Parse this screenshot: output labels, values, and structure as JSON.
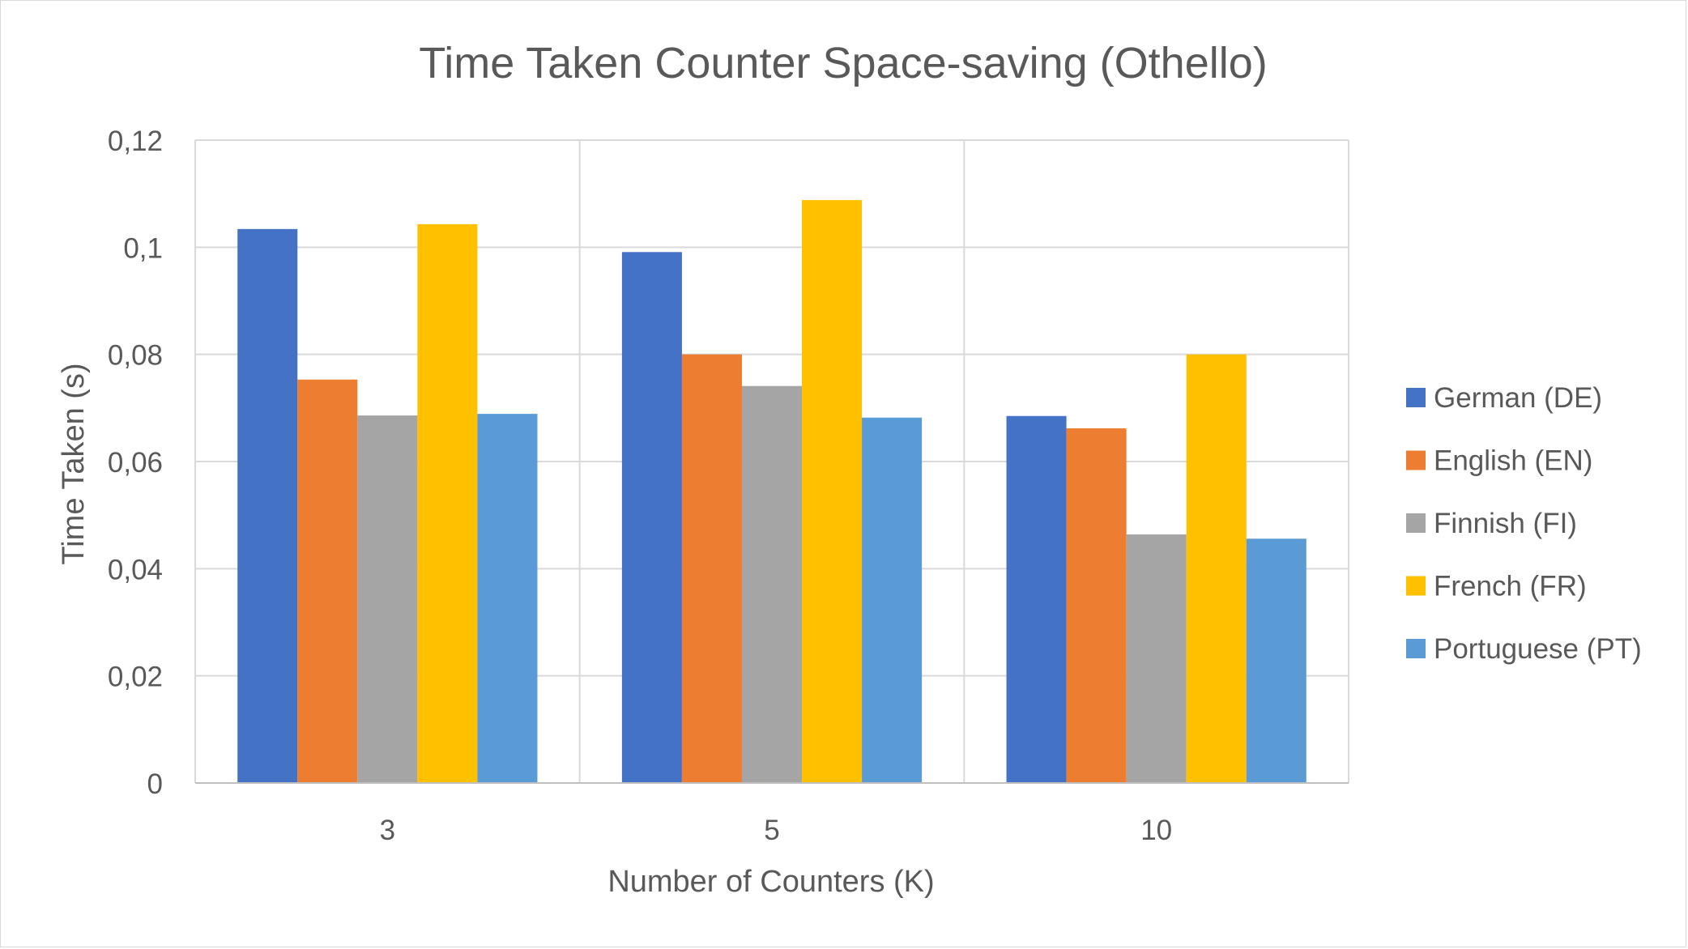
{
  "chart_data": {
    "type": "bar",
    "title": "Time Taken Counter Space-saving (Othello)",
    "xlabel": "Number of Counters (K)",
    "ylabel": "Time Taken (s)",
    "categories": [
      "3",
      "5",
      "10"
    ],
    "ylim": [
      0,
      0.12
    ],
    "yticks": [
      0,
      0.02,
      0.04,
      0.06,
      0.08,
      0.1,
      0.12
    ],
    "ytick_labels": [
      "0",
      "0,02",
      "0,04",
      "0,06",
      "0,08",
      "0,1",
      "0,12"
    ],
    "grid": true,
    "legend_position": "right",
    "series": [
      {
        "name": "German (DE)",
        "color": "#4472C4",
        "values": [
          0.1034,
          0.0991,
          0.0685
        ]
      },
      {
        "name": "English (EN)",
        "color": "#ED7D31",
        "values": [
          0.0753,
          0.08,
          0.0662
        ]
      },
      {
        "name": "Finnish (FI)",
        "color": "#A5A5A5",
        "values": [
          0.0686,
          0.0741,
          0.0464
        ]
      },
      {
        "name": "French (FR)",
        "color": "#FFC000",
        "values": [
          0.1043,
          0.1088,
          0.08
        ]
      },
      {
        "name": "Portuguese (PT)",
        "color": "#5B9BD5",
        "values": [
          0.0689,
          0.0682,
          0.0456
        ]
      }
    ]
  }
}
